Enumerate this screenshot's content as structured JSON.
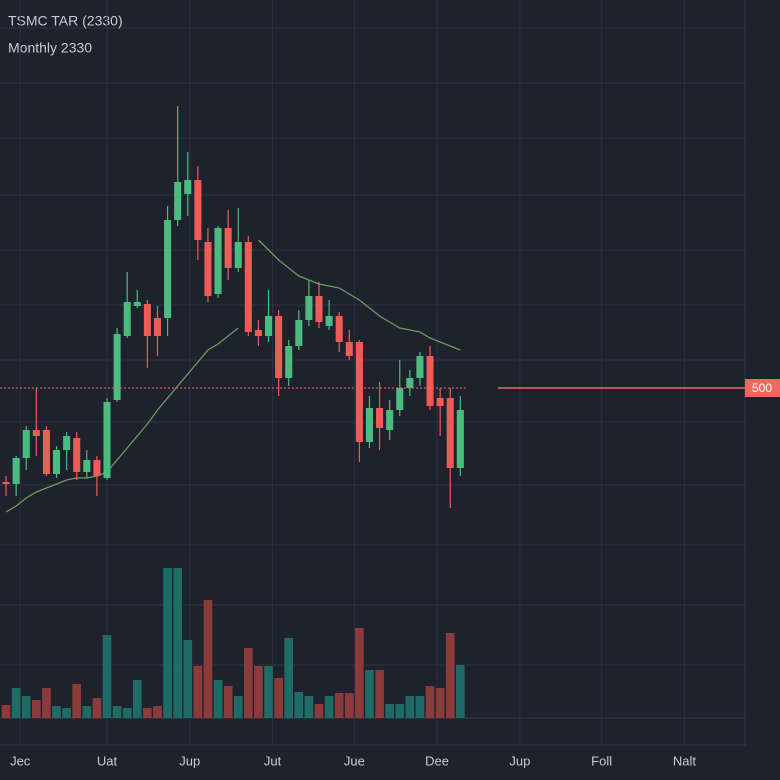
{
  "chart_data": {
    "type": "candlestick",
    "title": "TSMC TAR (2330)",
    "subtitle": "Monthly 2330",
    "open": [
      453,
      452,
      465,
      479,
      479,
      457,
      469,
      475,
      458,
      464,
      455,
      494,
      526,
      541,
      542,
      535,
      535,
      584,
      597,
      604,
      573,
      547,
      580,
      560,
      573,
      529,
      526,
      536,
      505,
      521,
      534,
      546,
      531,
      536,
      523,
      523,
      473,
      490,
      479,
      489,
      500,
      505,
      516,
      495,
      495,
      460
    ],
    "high": [
      456,
      466,
      481,
      500,
      481,
      471,
      478,
      478,
      469,
      466,
      495,
      530,
      558,
      549,
      544,
      541,
      591,
      641,
      618,
      611,
      580,
      581,
      589,
      590,
      576,
      534,
      549,
      539,
      524,
      539,
      554,
      553,
      544,
      538,
      529,
      524,
      496,
      503,
      494,
      514,
      509,
      518,
      521,
      500,
      500,
      496
    ],
    "low": [
      446,
      446,
      459,
      466,
      456,
      455,
      459,
      454,
      455,
      446,
      454,
      493,
      525,
      540,
      510,
      516,
      526,
      581,
      586,
      564,
      543,
      545,
      554,
      558,
      526,
      521,
      523,
      496,
      501,
      519,
      531,
      530,
      529,
      518,
      514,
      463,
      470,
      469,
      474,
      486,
      496,
      501,
      489,
      476,
      440,
      456
    ],
    "close": [
      452,
      465,
      479,
      476,
      457,
      469,
      476,
      458,
      464,
      456,
      493,
      527,
      543,
      543,
      526,
      526,
      584,
      603,
      604,
      574,
      546,
      580,
      560,
      573,
      528,
      526,
      536,
      505,
      521,
      534,
      546,
      533,
      536,
      523,
      516,
      473,
      490,
      480,
      489,
      500,
      505,
      516,
      491,
      491,
      460,
      489
    ],
    "volume": [
      13,
      30,
      22,
      18,
      30,
      12,
      10,
      34,
      12,
      20,
      83,
      12,
      10,
      38,
      10,
      12,
      150,
      150,
      78,
      52,
      118,
      38,
      32,
      22,
      70,
      52,
      52,
      40,
      80,
      26,
      22,
      14,
      22,
      25,
      25,
      90,
      48,
      48,
      14,
      14,
      22,
      22,
      32,
      30,
      85,
      53
    ],
    "ma": [
      438,
      441,
      445,
      448,
      450,
      452,
      454,
      455,
      455,
      456,
      458,
      464,
      470,
      476,
      482,
      489,
      495,
      501,
      507,
      513,
      519,
      522,
      526,
      530,
      null,
      574,
      569,
      564,
      560,
      556,
      554,
      552,
      551,
      550,
      547,
      544,
      540,
      536,
      533,
      530,
      529,
      528,
      525,
      523,
      521,
      519
    ],
    "up_color": "#4cbb7f",
    "down_color": "#ef5b57",
    "up_volume_color": "#1f6b66",
    "down_volume_color": "#8c3b3a",
    "ma_color": "#6f9a5e",
    "price_line": 500,
    "price_line_color": "#ef6a5e",
    "xlim": [
      -0.6,
      73.2
    ],
    "ylim": [
      324,
      694
    ],
    "volume_ylim": [
      0,
      160
    ],
    "xticks": [
      {
        "value": 1.4,
        "label": "Jec"
      },
      {
        "value": 10,
        "label": "Uat"
      },
      {
        "value": 18.2,
        "label": "Jup"
      },
      {
        "value": 26.4,
        "label": "Jut"
      },
      {
        "value": 34.5,
        "label": "Jue"
      },
      {
        "value": 42.7,
        "label": "Dee"
      },
      {
        "value": 50.9,
        "label": "Jup"
      },
      {
        "value": 59,
        "label": "Foll"
      },
      {
        "value": 67.2,
        "label": "Nalt"
      }
    ]
  }
}
